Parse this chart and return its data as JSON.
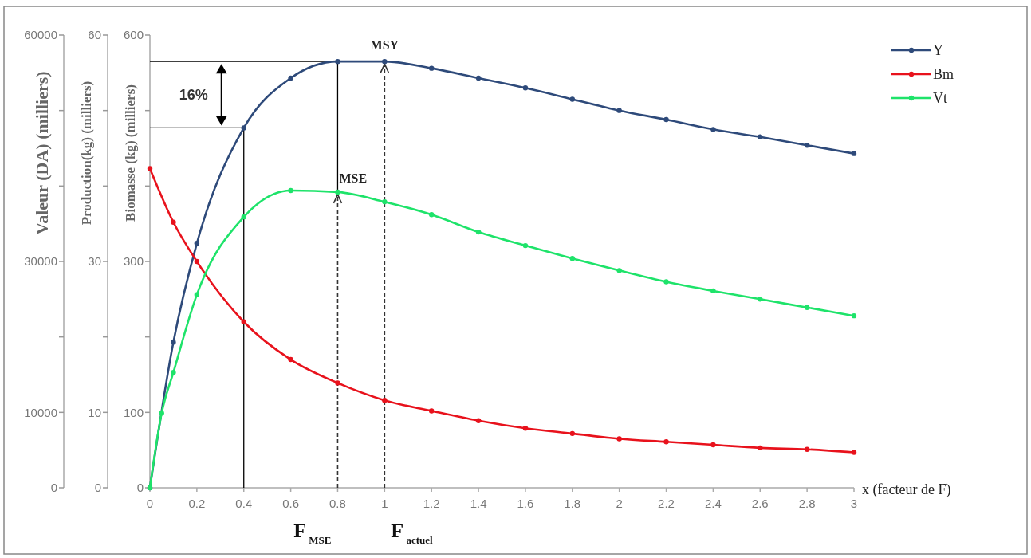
{
  "chart_data": {
    "type": "line",
    "xlabel": "x (facteur de F)",
    "ylabel": "Biomasse (kg) (milliers)",
    "y2label": "Production(kg) (milliers)",
    "y3label": "Valeur (DA) (milliers)",
    "xlim": [
      0,
      3
    ],
    "xticks": [
      0,
      0.2,
      0.4,
      0.6,
      0.8,
      1,
      1.2,
      1.4,
      1.6,
      1.8,
      2,
      2.2,
      2.4,
      2.6,
      2.8,
      3
    ],
    "ylim": [
      0,
      600
    ],
    "yticks": [
      0,
      100,
      {
        "value": 200,
        "label": null
      },
      300,
      {
        "value": 400,
        "label": null
      },
      {
        "value": 500,
        "label": null
      },
      600
    ],
    "y2lim": [
      0,
      60
    ],
    "y2ticks": [
      0,
      10,
      {
        "value": 20,
        "label": null
      },
      30,
      {
        "value": 40,
        "label": null
      },
      {
        "value": 50,
        "label": null
      },
      60
    ],
    "y3lim": [
      0,
      60000
    ],
    "y3ticks": [
      0,
      10000,
      {
        "value": 20000,
        "label": null
      },
      30000,
      {
        "value": 40000,
        "label": null
      },
      {
        "value": 50000,
        "label": null
      },
      60000
    ],
    "series": [
      {
        "name": "Y",
        "color": "#2e4a7a",
        "axis": "y2",
        "x": [
          0,
          0.1,
          0.2,
          0.4,
          0.6,
          0.8,
          1,
          1.2,
          1.4,
          1.6,
          1.8,
          2,
          2.2,
          2.4,
          2.6,
          2.8,
          3
        ],
        "values": [
          0,
          19.3,
          32.4,
          47.7,
          54.3,
          56.5,
          56.5,
          55.6,
          54.3,
          53.0,
          51.5,
          50.0,
          48.8,
          47.5,
          46.5,
          45.4,
          44.3
        ]
      },
      {
        "name": "Bm",
        "color": "#e8121c",
        "axis": "y",
        "x": [
          0,
          0.1,
          0.2,
          0.4,
          0.6,
          0.8,
          1,
          1.2,
          1.4,
          1.6,
          1.8,
          2,
          2.2,
          2.4,
          2.6,
          2.8,
          3
        ],
        "values": [
          423,
          352,
          300,
          220,
          170,
          139,
          116,
          102,
          89,
          79,
          72,
          65,
          61,
          57,
          53,
          51,
          47
        ]
      },
      {
        "name": "Vt",
        "color": "#1ee36a",
        "axis": "y3",
        "x": [
          0,
          0.05,
          0.1,
          0.2,
          0.4,
          0.6,
          0.8,
          1,
          1.2,
          1.4,
          1.6,
          1.8,
          2,
          2.2,
          2.4,
          2.6,
          2.8,
          3
        ],
        "values": [
          0,
          9900,
          15300,
          25600,
          35900,
          39400,
          39200,
          37900,
          36200,
          33900,
          32100,
          30400,
          28800,
          27300,
          26100,
          25000,
          23900,
          22800
        ]
      }
    ],
    "ref_lines": [
      {
        "axis": "y2",
        "value": 56.5,
        "color": "#000000"
      },
      {
        "axis": "y2",
        "value": 47.7,
        "color": "#000000"
      },
      {
        "axis": "x",
        "value": 0.4,
        "color": "#000000"
      },
      {
        "axis": "x",
        "value": 0.8,
        "color": "#000000"
      },
      {
        "axis": "x",
        "value": 0.8,
        "color": "#333333",
        "line_style": "dashed",
        "label": "F$_{MSE}$"
      },
      {
        "axis": "x",
        "value": 1,
        "color": "#333333",
        "line_style": "dashed",
        "label": "F$_{actuel}$"
      }
    ],
    "annotations": [
      {
        "text": "MSY",
        "x": 1,
        "y": 565
      },
      {
        "text": "MSE",
        "x": 0.8,
        "y": 392
      },
      "16%"
    ],
    "legend": "top right",
    "marker": "circle",
    "line_style": "solid",
    "grid": false
  }
}
